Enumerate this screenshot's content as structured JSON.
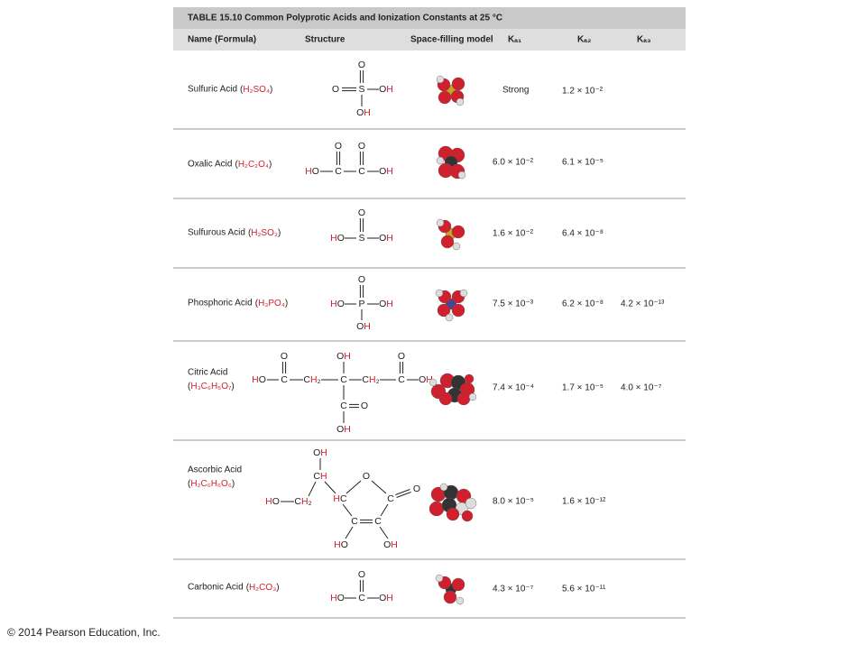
{
  "table": {
    "title": "TABLE 15.10 Common Polyprotic Acids and Ionization Constants at 25 °C",
    "columns": [
      "Name (Formula)",
      "Structure",
      "Space-filling model",
      "Kₐ₁",
      "Kₐ₂",
      "Kₐ₃"
    ],
    "rows": [
      {
        "name": "Sulfuric Acid",
        "formula": "(H₂SO₄)",
        "structure": [
          "O",
          "O",
          "S",
          "OH",
          "OH"
        ],
        "ka1": "Strong",
        "ka2": "1.2 × 10⁻²"
      },
      {
        "name": "Oxalic Acid",
        "formula": "(H₂C₂O₄)",
        "structure": [
          "O",
          "O",
          "HO",
          "C",
          "C",
          "OH"
        ],
        "ka1": "6.0 × 10⁻²",
        "ka2": "6.1 × 10⁻⁵"
      },
      {
        "name": "Sulfurous Acid",
        "formula": "(H₂SO₃)",
        "structure": [
          "O",
          "HO",
          "S",
          "OH"
        ],
        "ka1": "1.6 × 10⁻²",
        "ka2": "6.4 × 10⁻⁸"
      },
      {
        "name": "Phosphoric Acid",
        "formula": "(H₃PO₄)",
        "structure": [
          "O",
          "HO",
          "P",
          "OH",
          "OH"
        ],
        "ka1": "7.5 × 10⁻³",
        "ka2": "6.2 × 10⁻⁸",
        "ka3": "4.2 × 10⁻¹³"
      },
      {
        "name": "Citric Acid",
        "formula": "(H₃C₆H₅O₇)",
        "structure": [
          "O",
          "OH",
          "O",
          "HO",
          "C",
          "CH₂",
          "C",
          "CH₂",
          "C",
          "OH",
          "C",
          "O",
          "OH"
        ],
        "ka1": "7.4 × 10⁻⁴",
        "ka2": "1.7 × 10⁻⁵",
        "ka3": "4.0 × 10⁻⁷"
      },
      {
        "name": "Ascorbic Acid",
        "formula": "(H₂C₆H₆O₆)",
        "structure": [
          "OH",
          "CH",
          "O",
          "HO",
          "CH₂",
          "HC",
          "C",
          "O",
          "C",
          "C",
          "HO",
          "OH"
        ],
        "ka1": "8.0 × 10⁻⁵",
        "ka2": "1.6 × 10⁻¹²"
      },
      {
        "name": "Carbonic Acid",
        "formula": "(H₂CO₃)",
        "structure": [
          "O",
          "HO",
          "C",
          "OH"
        ],
        "ka1": "4.3 × 10⁻⁷",
        "ka2": "5.6 × 10⁻¹¹"
      }
    ]
  },
  "footer": "© 2014 Pearson Education, Inc."
}
